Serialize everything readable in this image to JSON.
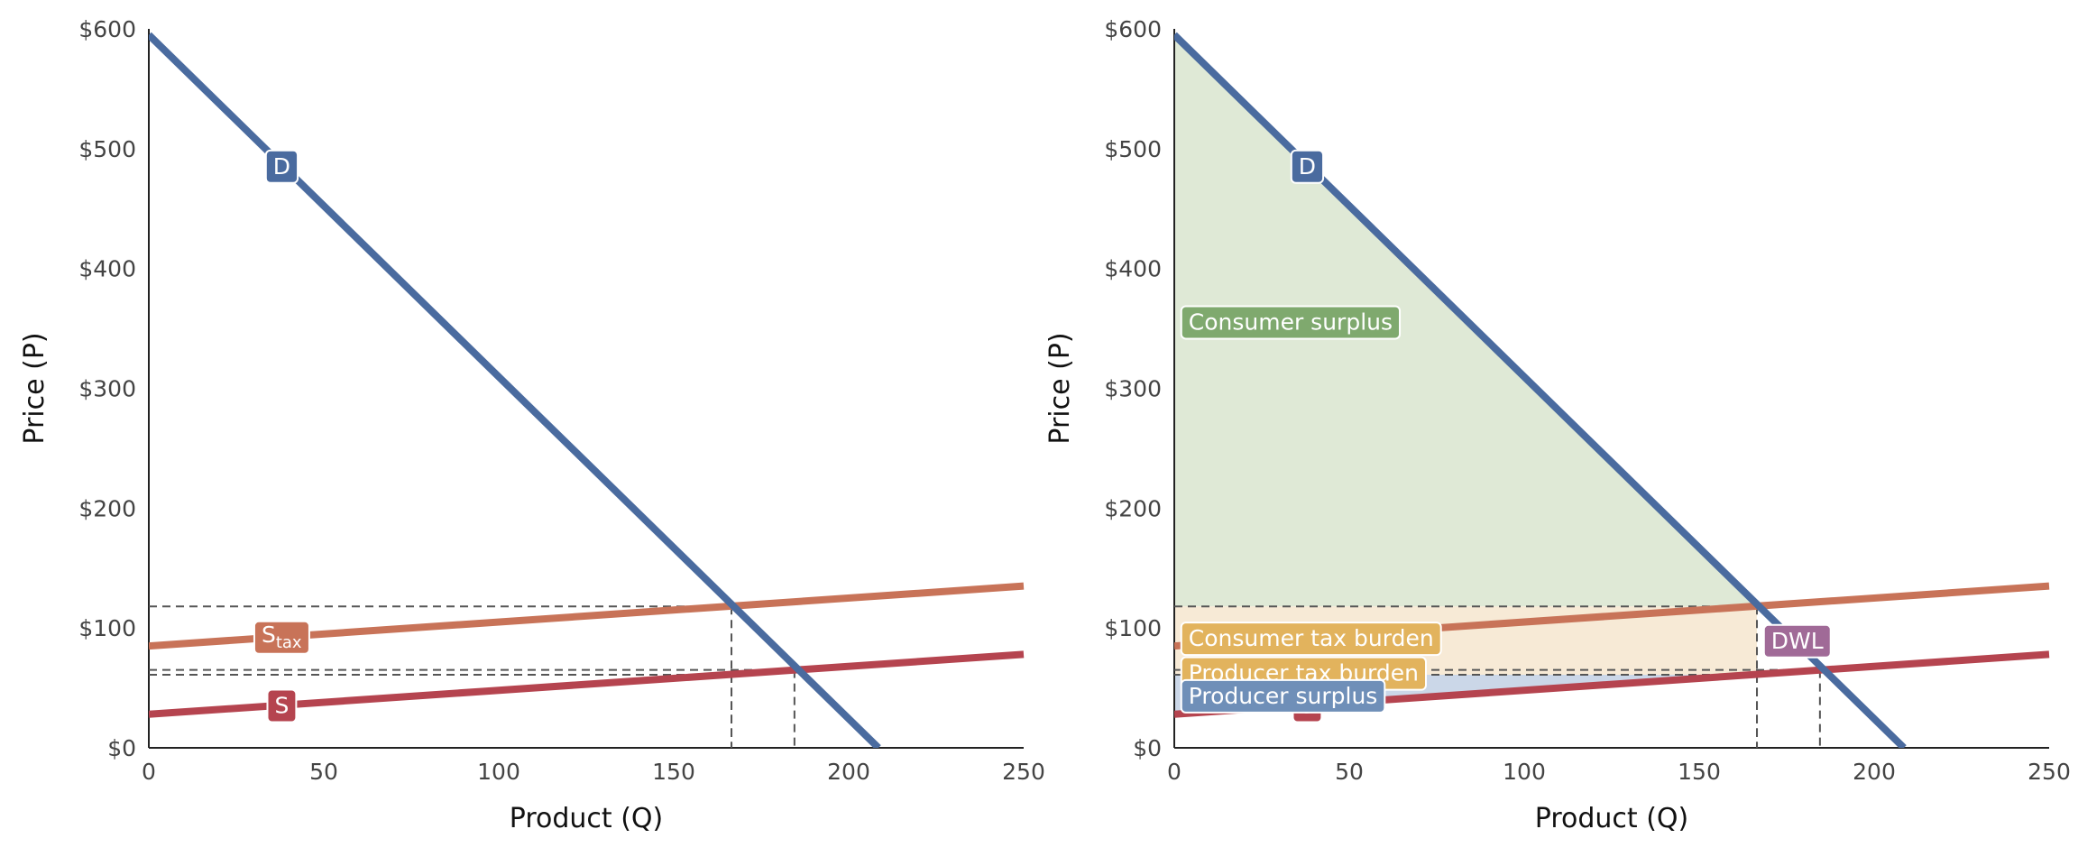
{
  "colors": {
    "demand": "#4a6b9f",
    "supply": "#b5444f",
    "supply_tax": "#c87358",
    "consumer_surplus": "#7fa96e",
    "consumer_surplus_fill": "#dfe9d6",
    "tax_fill": "#f7ead6",
    "consumer_tax_burden": "#e2b35d",
    "producer_tax_burden": "#e2b35d",
    "producer_surplus": "#6f8fb8",
    "producer_surplus_fill": "#cbd7e8",
    "dwl": "#a06a97",
    "axis": "#222222",
    "guide": "#555555"
  },
  "chart_data": [
    {
      "type": "line",
      "xlabel": "Product (Q)",
      "ylabel": "Price (P)",
      "xlim": [
        0,
        250
      ],
      "ylim": [
        0,
        600
      ],
      "x_ticks": [
        "0",
        "50",
        "100",
        "150",
        "200",
        "250"
      ],
      "y_ticks": [
        "$0",
        "$100",
        "$200",
        "$300",
        "$400",
        "$500",
        "$600"
      ],
      "series": [
        {
          "name": "D",
          "color_key": "demand",
          "x": [
            0,
            208.5
          ],
          "y": [
            595,
            0
          ]
        },
        {
          "name": "S",
          "color_key": "supply",
          "x": [
            0,
            250
          ],
          "y": [
            28,
            78
          ]
        },
        {
          "name": "S",
          "subscript": "tax",
          "color_key": "supply_tax",
          "x": [
            0,
            250
          ],
          "y": [
            85,
            135
          ]
        }
      ],
      "series_labels": [
        {
          "text": "D",
          "x": 38,
          "y": 485,
          "color_key": "demand"
        },
        {
          "text": "S",
          "subscript": "tax",
          "x": 38,
          "y": 92,
          "color_key": "supply_tax"
        },
        {
          "text": "S",
          "x": 38,
          "y": 35,
          "color_key": "supply"
        }
      ],
      "guides": [
        {
          "x": 166.5,
          "y": 118
        },
        {
          "x": 184.5,
          "y": 65
        },
        {
          "x": 166.5,
          "y": 61
        }
      ]
    },
    {
      "type": "area",
      "xlabel": "Product (Q)",
      "ylabel": "Price (P)",
      "xlim": [
        0,
        250
      ],
      "ylim": [
        0,
        600
      ],
      "x_ticks": [
        "0",
        "50",
        "100",
        "150",
        "200",
        "250"
      ],
      "y_ticks": [
        "$0",
        "$100",
        "$200",
        "$300",
        "$400",
        "$500",
        "$600"
      ],
      "series": [
        {
          "name": "D",
          "color_key": "demand",
          "x": [
            0,
            208.5
          ],
          "y": [
            595,
            0
          ]
        },
        {
          "name": "S",
          "color_key": "supply",
          "x": [
            0,
            250
          ],
          "y": [
            28,
            78
          ]
        },
        {
          "name": "S",
          "subscript": "tax",
          "color_key": "supply_tax",
          "x": [
            0,
            250
          ],
          "y": [
            85,
            135
          ]
        }
      ],
      "regions": [
        {
          "name": "consumer-surplus",
          "fill_key": "consumer_surplus_fill",
          "points": [
            [
              0,
              595
            ],
            [
              0,
              118
            ],
            [
              166.5,
              118
            ]
          ]
        },
        {
          "name": "tax-revenue",
          "fill_key": "tax_fill",
          "points": [
            [
              0,
              61
            ],
            [
              0,
              118
            ],
            [
              166.5,
              118
            ],
            [
              166.5,
              61
            ]
          ]
        },
        {
          "name": "producer-surplus",
          "fill_key": "producer_surplus_fill",
          "points": [
            [
              0,
              28
            ],
            [
              0,
              61
            ],
            [
              166.5,
              61
            ]
          ]
        }
      ],
      "series_labels": [
        {
          "text": "D",
          "x": 38,
          "y": 485,
          "color_key": "demand"
        },
        {
          "text": "S",
          "x": 38,
          "y": 35,
          "color_key": "supply"
        }
      ],
      "area_labels": [
        {
          "text": "Consumer surplus",
          "x": 2,
          "y": 355,
          "color_key": "consumer_surplus"
        },
        {
          "text": "Consumer tax burden",
          "x": 2,
          "y": 91,
          "color_key": "consumer_tax_burden"
        },
        {
          "text": "Producer tax burden",
          "x": 2,
          "y": 62,
          "color_key": "producer_tax_burden"
        },
        {
          "text": "Producer surplus",
          "x": 2,
          "y": 43,
          "color_key": "producer_surplus"
        },
        {
          "text": "DWL",
          "x": 168.5,
          "y": 89,
          "color_key": "dwl"
        }
      ],
      "guides": [
        {
          "x": 166.5,
          "y": 118
        },
        {
          "x": 184.5,
          "y": 65
        },
        {
          "x": 166.5,
          "y": 61
        }
      ]
    }
  ]
}
